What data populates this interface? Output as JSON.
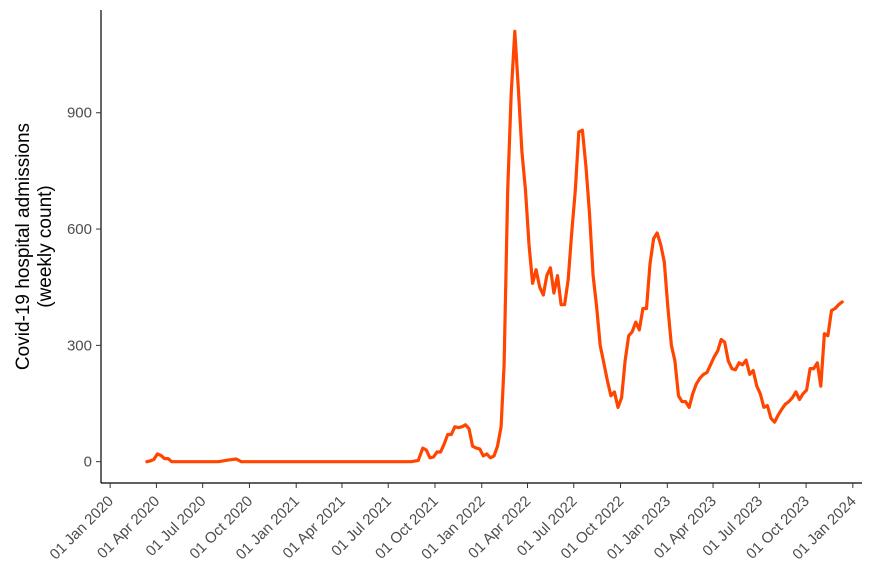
{
  "chart_data": {
    "type": "line",
    "title": "",
    "xlabel": "",
    "ylabel_lines": [
      "Covid-19 hospital admissions",
      "(weekly count)"
    ],
    "x_ticks": [
      "01 Jan 2020",
      "01 Apr 2020",
      "01 Jul 2020",
      "01 Oct 2020",
      "01 Jan 2021",
      "01 Apr 2021",
      "01 Jul 2021",
      "01 Oct 2021",
      "01 Jan 2022",
      "01 Apr 2022",
      "01 Jul 2022",
      "01 Oct 2022",
      "01 Jan 2023",
      "01 Apr 2023",
      "01 Jul 2023",
      "01 Oct 2023",
      "01 Jan 2024"
    ],
    "y_ticks": [
      0,
      300,
      600,
      900
    ],
    "xlim": [
      "2019-12-14",
      "2024-01-19"
    ],
    "ylim": [
      -55,
      1165
    ],
    "grid": false,
    "legend": "none",
    "series": [
      {
        "color": "#ff4500",
        "points": [
          [
            "2020-03-13",
            0
          ],
          [
            "2020-03-20",
            2
          ],
          [
            "2020-03-27",
            6
          ],
          [
            "2020-04-03",
            20
          ],
          [
            "2020-04-10",
            16
          ],
          [
            "2020-04-17",
            8
          ],
          [
            "2020-04-24",
            8
          ],
          [
            "2020-05-01",
            0
          ],
          [
            "2020-05-15",
            0
          ],
          [
            "2020-06-01",
            0
          ],
          [
            "2020-07-01",
            0
          ],
          [
            "2020-08-01",
            0
          ],
          [
            "2020-08-20",
            4
          ],
          [
            "2020-09-05",
            7
          ],
          [
            "2020-09-15",
            0
          ],
          [
            "2020-10-01",
            0
          ],
          [
            "2020-11-01",
            0
          ],
          [
            "2020-12-01",
            0
          ],
          [
            "2021-01-01",
            0
          ],
          [
            "2021-02-01",
            0
          ],
          [
            "2021-03-01",
            0
          ],
          [
            "2021-04-01",
            0
          ],
          [
            "2021-05-01",
            0
          ],
          [
            "2021-06-01",
            0
          ],
          [
            "2021-07-01",
            0
          ],
          [
            "2021-08-01",
            0
          ],
          [
            "2021-08-15",
            0
          ],
          [
            "2021-08-29",
            3
          ],
          [
            "2021-09-07",
            35
          ],
          [
            "2021-09-14",
            30
          ],
          [
            "2021-09-21",
            10
          ],
          [
            "2021-09-28",
            12
          ],
          [
            "2021-10-05",
            25
          ],
          [
            "2021-10-12",
            25
          ],
          [
            "2021-10-19",
            45
          ],
          [
            "2021-10-26",
            70
          ],
          [
            "2021-11-02",
            70
          ],
          [
            "2021-11-09",
            90
          ],
          [
            "2021-11-16",
            88
          ],
          [
            "2021-11-23",
            90
          ],
          [
            "2021-11-30",
            95
          ],
          [
            "2021-12-07",
            85
          ],
          [
            "2021-12-14",
            40
          ],
          [
            "2021-12-21",
            35
          ],
          [
            "2021-12-28",
            33
          ],
          [
            "2022-01-04",
            15
          ],
          [
            "2022-01-11",
            20
          ],
          [
            "2022-01-18",
            10
          ],
          [
            "2022-01-25",
            15
          ],
          [
            "2022-02-01",
            40
          ],
          [
            "2022-02-08",
            90
          ],
          [
            "2022-02-14",
            250
          ],
          [
            "2022-02-21",
            700
          ],
          [
            "2022-02-28",
            950
          ],
          [
            "2022-03-07",
            1110
          ],
          [
            "2022-03-14",
            960
          ],
          [
            "2022-03-21",
            800
          ],
          [
            "2022-03-28",
            700
          ],
          [
            "2022-04-04",
            560
          ],
          [
            "2022-04-11",
            460
          ],
          [
            "2022-04-18",
            495
          ],
          [
            "2022-04-25",
            450
          ],
          [
            "2022-05-02",
            430
          ],
          [
            "2022-05-09",
            480
          ],
          [
            "2022-05-16",
            500
          ],
          [
            "2022-05-23",
            435
          ],
          [
            "2022-05-30",
            480
          ],
          [
            "2022-06-06",
            405
          ],
          [
            "2022-06-13",
            405
          ],
          [
            "2022-06-20",
            470
          ],
          [
            "2022-06-27",
            590
          ],
          [
            "2022-07-04",
            700
          ],
          [
            "2022-07-11",
            850
          ],
          [
            "2022-07-18",
            855
          ],
          [
            "2022-07-25",
            760
          ],
          [
            "2022-08-01",
            640
          ],
          [
            "2022-08-08",
            480
          ],
          [
            "2022-08-15",
            400
          ],
          [
            "2022-08-22",
            300
          ],
          [
            "2022-08-29",
            255
          ],
          [
            "2022-09-05",
            210
          ],
          [
            "2022-09-12",
            170
          ],
          [
            "2022-09-19",
            180
          ],
          [
            "2022-09-26",
            140
          ],
          [
            "2022-10-03",
            165
          ],
          [
            "2022-10-10",
            260
          ],
          [
            "2022-10-17",
            325
          ],
          [
            "2022-10-24",
            335
          ],
          [
            "2022-10-31",
            360
          ],
          [
            "2022-11-07",
            340
          ],
          [
            "2022-11-14",
            395
          ],
          [
            "2022-11-21",
            395
          ],
          [
            "2022-11-28",
            510
          ],
          [
            "2022-12-05",
            575
          ],
          [
            "2022-12-12",
            590
          ],
          [
            "2022-12-19",
            560
          ],
          [
            "2022-12-26",
            515
          ],
          [
            "2023-01-02",
            400
          ],
          [
            "2023-01-09",
            300
          ],
          [
            "2023-01-16",
            260
          ],
          [
            "2023-01-23",
            170
          ],
          [
            "2023-01-30",
            155
          ],
          [
            "2023-02-06",
            155
          ],
          [
            "2023-02-13",
            140
          ],
          [
            "2023-02-20",
            175
          ],
          [
            "2023-02-27",
            200
          ],
          [
            "2023-03-06",
            215
          ],
          [
            "2023-03-13",
            225
          ],
          [
            "2023-03-20",
            230
          ],
          [
            "2023-03-27",
            250
          ],
          [
            "2023-04-03",
            270
          ],
          [
            "2023-04-10",
            285
          ],
          [
            "2023-04-17",
            315
          ],
          [
            "2023-04-24",
            308
          ],
          [
            "2023-05-01",
            260
          ],
          [
            "2023-05-08",
            240
          ],
          [
            "2023-05-15",
            237
          ],
          [
            "2023-05-22",
            255
          ],
          [
            "2023-05-29",
            250
          ],
          [
            "2023-06-05",
            262
          ],
          [
            "2023-06-12",
            225
          ],
          [
            "2023-06-19",
            235
          ],
          [
            "2023-06-26",
            195
          ],
          [
            "2023-07-03",
            175
          ],
          [
            "2023-07-10",
            140
          ],
          [
            "2023-07-17",
            145
          ],
          [
            "2023-07-24",
            112
          ],
          [
            "2023-07-31",
            102
          ],
          [
            "2023-08-07",
            120
          ],
          [
            "2023-08-14",
            135
          ],
          [
            "2023-08-21",
            148
          ],
          [
            "2023-08-28",
            155
          ],
          [
            "2023-09-04",
            165
          ],
          [
            "2023-09-11",
            180
          ],
          [
            "2023-09-18",
            160
          ],
          [
            "2023-09-25",
            175
          ],
          [
            "2023-10-02",
            185
          ],
          [
            "2023-10-09",
            240
          ],
          [
            "2023-10-16",
            240
          ],
          [
            "2023-10-23",
            255
          ],
          [
            "2023-10-30",
            195
          ],
          [
            "2023-11-06",
            330
          ],
          [
            "2023-11-13",
            325
          ],
          [
            "2023-11-20",
            390
          ],
          [
            "2023-11-27",
            395
          ],
          [
            "2023-12-04",
            405
          ],
          [
            "2023-12-11",
            412
          ]
        ]
      }
    ]
  }
}
